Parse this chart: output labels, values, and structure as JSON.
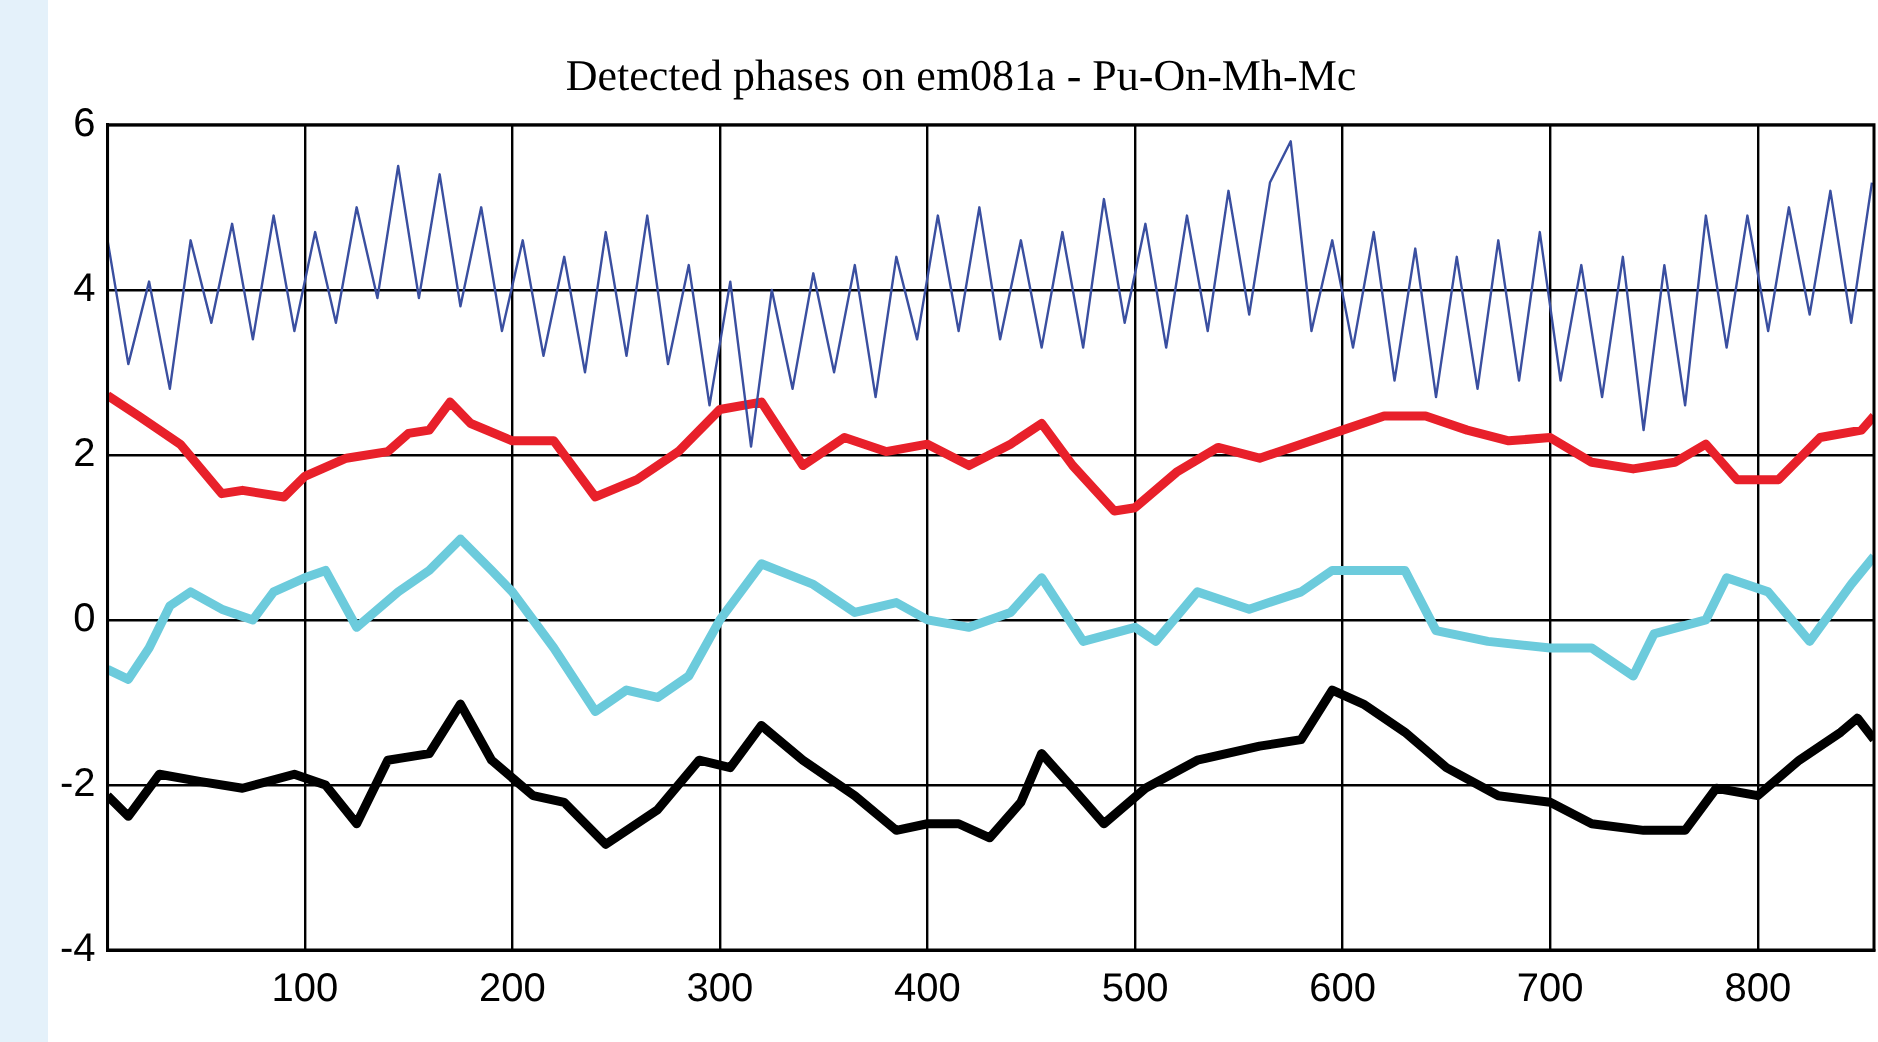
{
  "chart_data": {
    "type": "line",
    "title": "Detected phases on em081a - Pu-On-Mh-Mc",
    "xlim": [
      5,
      856
    ],
    "ylim": [
      -4,
      6
    ],
    "xticks": [
      100,
      200,
      300,
      400,
      500,
      600,
      700,
      800
    ],
    "yticks": [
      -4,
      -2,
      0,
      2,
      4,
      6
    ],
    "grid": true,
    "legend": false,
    "marker": "none",
    "line_style": "solid",
    "series": [
      {
        "color": "#3a4fa0",
        "x": [
          5,
          15,
          25,
          35,
          45,
          55,
          65,
          75,
          85,
          95,
          105,
          115,
          125,
          135,
          145,
          155,
          165,
          175,
          185,
          195,
          205,
          215,
          225,
          235,
          245,
          255,
          265,
          275,
          285,
          295,
          305,
          315,
          325,
          335,
          345,
          355,
          365,
          375,
          385,
          395,
          405,
          415,
          425,
          435,
          445,
          455,
          465,
          475,
          485,
          495,
          505,
          515,
          525,
          535,
          545,
          555,
          565,
          575,
          585,
          595,
          605,
          615,
          625,
          635,
          645,
          655,
          665,
          675,
          685,
          695,
          705,
          715,
          725,
          735,
          745,
          755,
          765,
          775,
          785,
          795,
          805,
          815,
          825,
          835,
          845,
          855
        ],
        "values": [
          4.6,
          3.1,
          4.1,
          2.8,
          4.6,
          3.6,
          4.8,
          3.4,
          4.9,
          3.5,
          4.7,
          3.6,
          5.0,
          3.9,
          5.5,
          3.9,
          5.4,
          3.8,
          5.0,
          3.5,
          4.6,
          3.2,
          4.4,
          3.0,
          4.7,
          3.2,
          4.9,
          3.1,
          4.3,
          2.6,
          4.1,
          2.1,
          4.0,
          2.8,
          4.2,
          3.0,
          4.3,
          2.7,
          4.4,
          3.4,
          4.9,
          3.5,
          5.0,
          3.4,
          4.6,
          3.3,
          4.7,
          3.3,
          5.1,
          3.6,
          4.8,
          3.3,
          4.9,
          3.5,
          5.2,
          3.7,
          5.3,
          5.8,
          3.5,
          4.6,
          3.3,
          4.7,
          2.9,
          4.5,
          2.7,
          4.4,
          2.8,
          4.6,
          2.9,
          4.7,
          2.9,
          4.3,
          2.7,
          4.4,
          2.3,
          4.3,
          2.6,
          4.9,
          3.3,
          4.9,
          3.5,
          5.0,
          3.7,
          5.2,
          3.6,
          5.3
        ]
      },
      {
        "color": "#e8202a",
        "x": [
          5,
          20,
          40,
          60,
          70,
          90,
          100,
          120,
          140,
          150,
          160,
          170,
          180,
          200,
          220,
          240,
          260,
          280,
          300,
          320,
          340,
          360,
          380,
          400,
          420,
          440,
          455,
          470,
          490,
          500,
          520,
          540,
          560,
          580,
          600,
          620,
          640,
          660,
          680,
          700,
          720,
          740,
          760,
          775,
          790,
          810,
          830,
          850,
          856
        ],
        "values": [
          2.72,
          2.47,
          2.13,
          1.53,
          1.57,
          1.49,
          1.74,
          1.96,
          2.04,
          2.26,
          2.3,
          2.64,
          2.38,
          2.17,
          2.17,
          1.49,
          1.7,
          2.04,
          2.55,
          2.64,
          1.87,
          2.21,
          2.04,
          2.13,
          1.87,
          2.13,
          2.38,
          1.87,
          1.32,
          1.36,
          1.79,
          2.09,
          1.96,
          2.13,
          2.3,
          2.47,
          2.47,
          2.3,
          2.17,
          2.21,
          1.91,
          1.83,
          1.91,
          2.13,
          1.7,
          1.7,
          2.21,
          2.3,
          2.47
        ]
      },
      {
        "color": "#6ccbdc",
        "x": [
          5,
          15,
          25,
          35,
          45,
          60,
          75,
          85,
          100,
          110,
          125,
          145,
          160,
          175,
          190,
          200,
          220,
          240,
          255,
          270,
          285,
          300,
          320,
          345,
          365,
          385,
          400,
          420,
          440,
          455,
          475,
          500,
          510,
          530,
          555,
          580,
          595,
          620,
          630,
          645,
          670,
          700,
          720,
          740,
          750,
          775,
          785,
          805,
          825,
          845,
          856
        ],
        "values": [
          -0.6,
          -0.72,
          -0.34,
          0.17,
          0.34,
          0.13,
          0,
          0.34,
          0.51,
          0.6,
          -0.09,
          0.34,
          0.6,
          0.98,
          0.6,
          0.34,
          -0.34,
          -1.11,
          -0.85,
          -0.94,
          -0.68,
          0,
          0.68,
          0.43,
          0.09,
          0.21,
          0,
          -0.09,
          0.09,
          0.51,
          -0.26,
          -0.09,
          -0.26,
          0.34,
          0.13,
          0.34,
          0.6,
          0.6,
          0.6,
          -0.13,
          -0.26,
          -0.34,
          -0.34,
          -0.68,
          -0.17,
          0,
          0.51,
          0.34,
          -0.26,
          0.43,
          0.77
        ]
      },
      {
        "color": "#000000",
        "x": [
          5,
          15,
          30,
          50,
          70,
          95,
          110,
          125,
          140,
          160,
          175,
          190,
          210,
          225,
          245,
          270,
          290,
          305,
          320,
          340,
          365,
          385,
          400,
          415,
          430,
          445,
          455,
          470,
          485,
          505,
          530,
          560,
          580,
          595,
          610,
          630,
          650,
          675,
          700,
          720,
          745,
          765,
          780,
          800,
          820,
          840,
          848,
          856
        ],
        "values": [
          -2.13,
          -2.38,
          -1.87,
          -1.96,
          -2.04,
          -1.87,
          -2.0,
          -2.47,
          -1.7,
          -1.62,
          -1.02,
          -1.7,
          -2.13,
          -2.21,
          -2.72,
          -2.3,
          -1.7,
          -1.79,
          -1.28,
          -1.7,
          -2.13,
          -2.55,
          -2.47,
          -2.47,
          -2.64,
          -2.21,
          -1.62,
          -2.04,
          -2.47,
          -2.04,
          -1.7,
          -1.53,
          -1.45,
          -0.85,
          -1.02,
          -1.36,
          -1.79,
          -2.13,
          -2.21,
          -2.47,
          -2.55,
          -2.55,
          -2.04,
          -2.13,
          -1.7,
          -1.36,
          -1.19,
          -1.45
        ]
      }
    ]
  }
}
